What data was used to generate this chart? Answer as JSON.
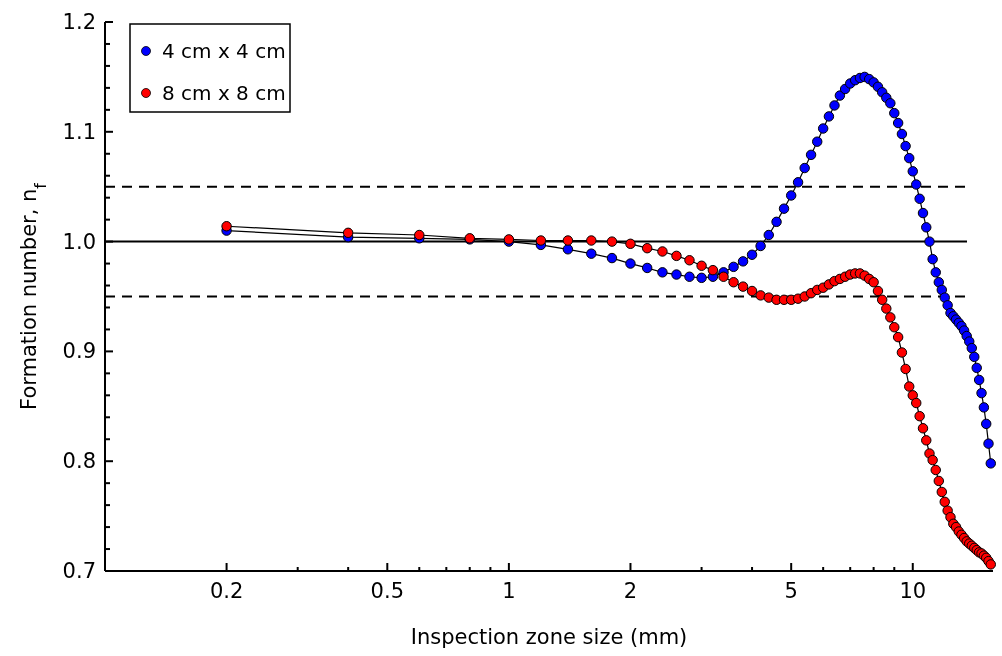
{
  "chart_data": {
    "type": "line",
    "xlabel": "Inspection zone size (mm)",
    "ylabel": "Formation number, n$_{f}$",
    "log": "x",
    "xlim": [
      0.1,
      15.8
    ],
    "ylim": [
      0.7,
      1.2
    ],
    "xticks": [
      {
        "value": 0.1,
        "label": null
      },
      0.2,
      {
        "value": 0.3,
        "label": null
      },
      {
        "value": 0.4,
        "label": null
      },
      0.5,
      {
        "value": 0.6,
        "label": null
      },
      {
        "value": 0.7,
        "label": null
      },
      {
        "value": 0.8,
        "label": null
      },
      {
        "value": 0.9,
        "label": null
      },
      1,
      2,
      {
        "value": 3,
        "label": null
      },
      {
        "value": 4,
        "label": null
      },
      5,
      {
        "value": 6,
        "label": null
      },
      {
        "value": 7,
        "label": null
      },
      {
        "value": 8,
        "label": null
      },
      {
        "value": 9,
        "label": null
      },
      10
    ],
    "yticks": [
      0.7,
      {
        "value": 0.72,
        "label": null
      },
      {
        "value": 0.74,
        "label": null
      },
      {
        "value": 0.76,
        "label": null
      },
      {
        "value": 0.78,
        "label": null
      },
      0.8,
      {
        "value": 0.82,
        "label": null
      },
      {
        "value": 0.84,
        "label": null
      },
      {
        "value": 0.86,
        "label": null
      },
      {
        "value": 0.88,
        "label": null
      },
      0.9,
      {
        "value": 0.92,
        "label": null
      },
      {
        "value": 0.94,
        "label": null
      },
      {
        "value": 0.96,
        "label": null
      },
      {
        "value": 0.98,
        "label": null
      },
      {
        "value": 1,
        "label": "1.0"
      },
      {
        "value": 1.02,
        "label": null
      },
      {
        "value": 1.04,
        "label": null
      },
      {
        "value": 1.06,
        "label": null
      },
      {
        "value": 1.08,
        "label": null
      },
      1.1,
      {
        "value": 1.12,
        "label": null
      },
      {
        "value": 1.14,
        "label": null
      },
      {
        "value": 1.16,
        "label": null
      },
      {
        "value": 1.18,
        "label": null
      },
      1.2
    ],
    "grid": false,
    "legend": "top left",
    "marker": "circle",
    "line_style": "solid",
    "x": [
      0.2,
      0.4,
      0.6,
      0.8,
      1.0,
      1.2,
      1.4,
      1.6,
      1.8,
      2.0,
      2.2,
      2.4,
      2.6,
      2.8,
      3.0,
      3.2,
      3.4,
      3.6,
      3.8,
      4.0,
      4.2,
      4.4,
      4.6,
      4.8,
      5.0,
      5.2,
      5.4,
      5.6,
      5.8,
      6.0,
      6.2,
      6.4,
      6.6,
      6.8,
      7.0,
      7.2,
      7.4,
      7.6,
      7.8,
      8.0,
      8.2,
      8.4,
      8.6,
      8.8,
      9.0,
      9.2,
      9.4,
      9.6,
      9.8,
      10.0,
      10.2,
      10.4,
      10.6,
      10.8,
      11.0,
      11.2,
      11.4,
      11.6,
      11.8,
      12.0,
      12.2,
      12.4,
      12.6,
      12.8,
      13.0,
      13.2,
      13.4,
      13.6,
      13.8,
      14.0,
      14.2,
      14.4,
      14.6,
      14.8,
      15.0,
      15.2,
      15.4,
      15.6
    ],
    "series": [
      {
        "name": "4 cm x 4 cm",
        "color": "#0000ff",
        "values": [
          1.01,
          1.004,
          1.003,
          1.002,
          1.0,
          0.997,
          0.993,
          0.989,
          0.985,
          0.98,
          0.976,
          0.972,
          0.97,
          0.968,
          0.967,
          0.968,
          0.972,
          0.977,
          0.982,
          0.988,
          0.996,
          1.006,
          1.018,
          1.03,
          1.042,
          1.054,
          1.067,
          1.079,
          1.091,
          1.103,
          1.114,
          1.124,
          1.133,
          1.139,
          1.144,
          1.147,
          1.149,
          1.15,
          1.148,
          1.145,
          1.141,
          1.136,
          1.131,
          1.126,
          1.117,
          1.108,
          1.098,
          1.087,
          1.076,
          1.064,
          1.052,
          1.039,
          1.026,
          1.013,
          1.0,
          0.984,
          0.972,
          0.963,
          0.956,
          0.949,
          0.942,
          0.935,
          0.932,
          0.929,
          0.926,
          0.923,
          0.919,
          0.914,
          0.909,
          0.903,
          0.895,
          0.885,
          0.874,
          0.862,
          0.849,
          0.834,
          0.816,
          0.798
        ]
      },
      {
        "name": "8 cm x 8 cm",
        "color": "#ff0000",
        "values": [
          1.014,
          1.008,
          1.006,
          1.003,
          1.002,
          1.001,
          1.001,
          1.001,
          1.0,
          0.998,
          0.994,
          0.991,
          0.987,
          0.983,
          0.978,
          0.974,
          0.968,
          0.963,
          0.959,
          0.955,
          0.951,
          0.949,
          0.947,
          0.947,
          0.947,
          0.948,
          0.95,
          0.953,
          0.956,
          0.958,
          0.961,
          0.964,
          0.966,
          0.968,
          0.97,
          0.971,
          0.971,
          0.969,
          0.966,
          0.963,
          0.955,
          0.947,
          0.939,
          0.931,
          0.922,
          0.913,
          0.899,
          0.884,
          0.868,
          0.86,
          0.853,
          0.841,
          0.83,
          0.819,
          0.807,
          0.801,
          0.792,
          0.782,
          0.772,
          0.763,
          0.755,
          0.749,
          0.743,
          0.74,
          0.736,
          0.733,
          0.73,
          0.727,
          0.725,
          0.723,
          0.721,
          0.719,
          0.717,
          0.716,
          0.714,
          0.712,
          0.709,
          0.706
        ]
      }
    ],
    "ref_lines": [
      {
        "axis": "y",
        "value": 1.0,
        "color": "#000000",
        "line_style": "solid"
      },
      {
        "axis": "y",
        "value": 1.05,
        "color": "#000000",
        "line_style": "dashed"
      },
      {
        "axis": "y",
        "value": 0.95,
        "color": "#000000",
        "line_style": "dashed"
      }
    ]
  }
}
